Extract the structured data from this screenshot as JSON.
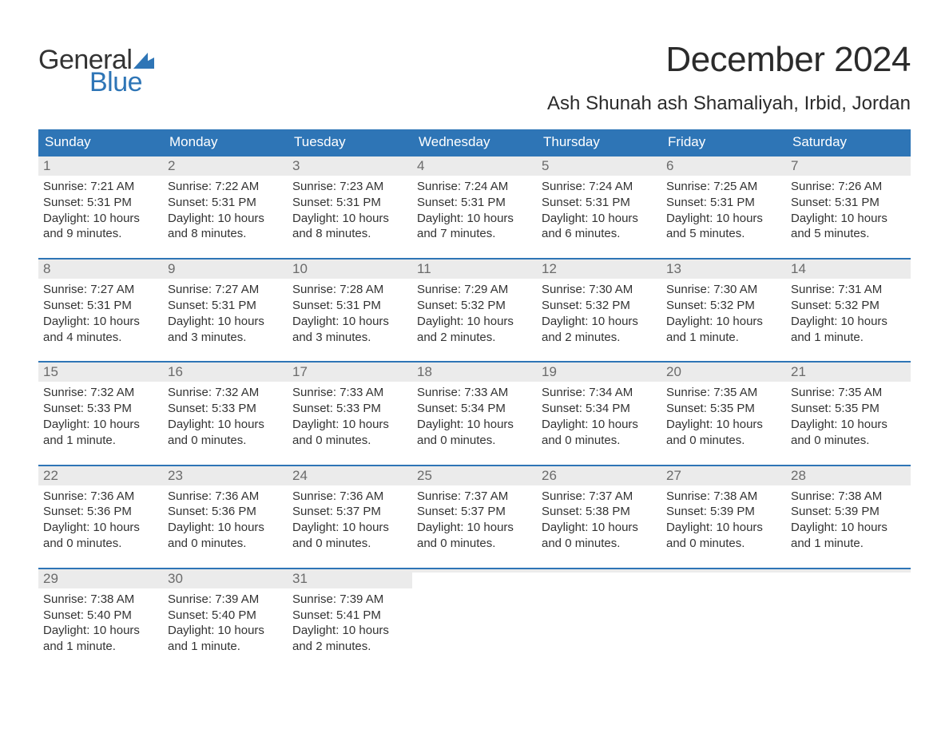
{
  "brand": {
    "line1": "General",
    "line2": "Blue",
    "flag_color": "#2e75b6"
  },
  "title": "December 2024",
  "location": "Ash Shunah ash Shamaliyah, Irbid, Jordan",
  "colors": {
    "header_bg": "#2e75b6",
    "header_text": "#ffffff",
    "daynum_bg": "#ebebeb",
    "daynum_text": "#6b6b6b",
    "body_text": "#333333",
    "rule": "#2e75b6",
    "background": "#ffffff"
  },
  "typography": {
    "title_fontsize": 44,
    "location_fontsize": 24,
    "weekday_fontsize": 17,
    "daynum_fontsize": 17,
    "body_fontsize": 15
  },
  "weekdays": [
    "Sunday",
    "Monday",
    "Tuesday",
    "Wednesday",
    "Thursday",
    "Friday",
    "Saturday"
  ],
  "weeks": [
    [
      {
        "n": "1",
        "sunrise": "Sunrise: 7:21 AM",
        "sunset": "Sunset: 5:31 PM",
        "day1": "Daylight: 10 hours",
        "day2": "and 9 minutes."
      },
      {
        "n": "2",
        "sunrise": "Sunrise: 7:22 AM",
        "sunset": "Sunset: 5:31 PM",
        "day1": "Daylight: 10 hours",
        "day2": "and 8 minutes."
      },
      {
        "n": "3",
        "sunrise": "Sunrise: 7:23 AM",
        "sunset": "Sunset: 5:31 PM",
        "day1": "Daylight: 10 hours",
        "day2": "and 8 minutes."
      },
      {
        "n": "4",
        "sunrise": "Sunrise: 7:24 AM",
        "sunset": "Sunset: 5:31 PM",
        "day1": "Daylight: 10 hours",
        "day2": "and 7 minutes."
      },
      {
        "n": "5",
        "sunrise": "Sunrise: 7:24 AM",
        "sunset": "Sunset: 5:31 PM",
        "day1": "Daylight: 10 hours",
        "day2": "and 6 minutes."
      },
      {
        "n": "6",
        "sunrise": "Sunrise: 7:25 AM",
        "sunset": "Sunset: 5:31 PM",
        "day1": "Daylight: 10 hours",
        "day2": "and 5 minutes."
      },
      {
        "n": "7",
        "sunrise": "Sunrise: 7:26 AM",
        "sunset": "Sunset: 5:31 PM",
        "day1": "Daylight: 10 hours",
        "day2": "and 5 minutes."
      }
    ],
    [
      {
        "n": "8",
        "sunrise": "Sunrise: 7:27 AM",
        "sunset": "Sunset: 5:31 PM",
        "day1": "Daylight: 10 hours",
        "day2": "and 4 minutes."
      },
      {
        "n": "9",
        "sunrise": "Sunrise: 7:27 AM",
        "sunset": "Sunset: 5:31 PM",
        "day1": "Daylight: 10 hours",
        "day2": "and 3 minutes."
      },
      {
        "n": "10",
        "sunrise": "Sunrise: 7:28 AM",
        "sunset": "Sunset: 5:31 PM",
        "day1": "Daylight: 10 hours",
        "day2": "and 3 minutes."
      },
      {
        "n": "11",
        "sunrise": "Sunrise: 7:29 AM",
        "sunset": "Sunset: 5:32 PM",
        "day1": "Daylight: 10 hours",
        "day2": "and 2 minutes."
      },
      {
        "n": "12",
        "sunrise": "Sunrise: 7:30 AM",
        "sunset": "Sunset: 5:32 PM",
        "day1": "Daylight: 10 hours",
        "day2": "and 2 minutes."
      },
      {
        "n": "13",
        "sunrise": "Sunrise: 7:30 AM",
        "sunset": "Sunset: 5:32 PM",
        "day1": "Daylight: 10 hours",
        "day2": "and 1 minute."
      },
      {
        "n": "14",
        "sunrise": "Sunrise: 7:31 AM",
        "sunset": "Sunset: 5:32 PM",
        "day1": "Daylight: 10 hours",
        "day2": "and 1 minute."
      }
    ],
    [
      {
        "n": "15",
        "sunrise": "Sunrise: 7:32 AM",
        "sunset": "Sunset: 5:33 PM",
        "day1": "Daylight: 10 hours",
        "day2": "and 1 minute."
      },
      {
        "n": "16",
        "sunrise": "Sunrise: 7:32 AM",
        "sunset": "Sunset: 5:33 PM",
        "day1": "Daylight: 10 hours",
        "day2": "and 0 minutes."
      },
      {
        "n": "17",
        "sunrise": "Sunrise: 7:33 AM",
        "sunset": "Sunset: 5:33 PM",
        "day1": "Daylight: 10 hours",
        "day2": "and 0 minutes."
      },
      {
        "n": "18",
        "sunrise": "Sunrise: 7:33 AM",
        "sunset": "Sunset: 5:34 PM",
        "day1": "Daylight: 10 hours",
        "day2": "and 0 minutes."
      },
      {
        "n": "19",
        "sunrise": "Sunrise: 7:34 AM",
        "sunset": "Sunset: 5:34 PM",
        "day1": "Daylight: 10 hours",
        "day2": "and 0 minutes."
      },
      {
        "n": "20",
        "sunrise": "Sunrise: 7:35 AM",
        "sunset": "Sunset: 5:35 PM",
        "day1": "Daylight: 10 hours",
        "day2": "and 0 minutes."
      },
      {
        "n": "21",
        "sunrise": "Sunrise: 7:35 AM",
        "sunset": "Sunset: 5:35 PM",
        "day1": "Daylight: 10 hours",
        "day2": "and 0 minutes."
      }
    ],
    [
      {
        "n": "22",
        "sunrise": "Sunrise: 7:36 AM",
        "sunset": "Sunset: 5:36 PM",
        "day1": "Daylight: 10 hours",
        "day2": "and 0 minutes."
      },
      {
        "n": "23",
        "sunrise": "Sunrise: 7:36 AM",
        "sunset": "Sunset: 5:36 PM",
        "day1": "Daylight: 10 hours",
        "day2": "and 0 minutes."
      },
      {
        "n": "24",
        "sunrise": "Sunrise: 7:36 AM",
        "sunset": "Sunset: 5:37 PM",
        "day1": "Daylight: 10 hours",
        "day2": "and 0 minutes."
      },
      {
        "n": "25",
        "sunrise": "Sunrise: 7:37 AM",
        "sunset": "Sunset: 5:37 PM",
        "day1": "Daylight: 10 hours",
        "day2": "and 0 minutes."
      },
      {
        "n": "26",
        "sunrise": "Sunrise: 7:37 AM",
        "sunset": "Sunset: 5:38 PM",
        "day1": "Daylight: 10 hours",
        "day2": "and 0 minutes."
      },
      {
        "n": "27",
        "sunrise": "Sunrise: 7:38 AM",
        "sunset": "Sunset: 5:39 PM",
        "day1": "Daylight: 10 hours",
        "day2": "and 0 minutes."
      },
      {
        "n": "28",
        "sunrise": "Sunrise: 7:38 AM",
        "sunset": "Sunset: 5:39 PM",
        "day1": "Daylight: 10 hours",
        "day2": "and 1 minute."
      }
    ],
    [
      {
        "n": "29",
        "sunrise": "Sunrise: 7:38 AM",
        "sunset": "Sunset: 5:40 PM",
        "day1": "Daylight: 10 hours",
        "day2": "and 1 minute."
      },
      {
        "n": "30",
        "sunrise": "Sunrise: 7:39 AM",
        "sunset": "Sunset: 5:40 PM",
        "day1": "Daylight: 10 hours",
        "day2": "and 1 minute."
      },
      {
        "n": "31",
        "sunrise": "Sunrise: 7:39 AM",
        "sunset": "Sunset: 5:41 PM",
        "day1": "Daylight: 10 hours",
        "day2": "and 2 minutes."
      },
      {
        "empty": true
      },
      {
        "empty": true
      },
      {
        "empty": true
      },
      {
        "empty": true
      }
    ]
  ]
}
